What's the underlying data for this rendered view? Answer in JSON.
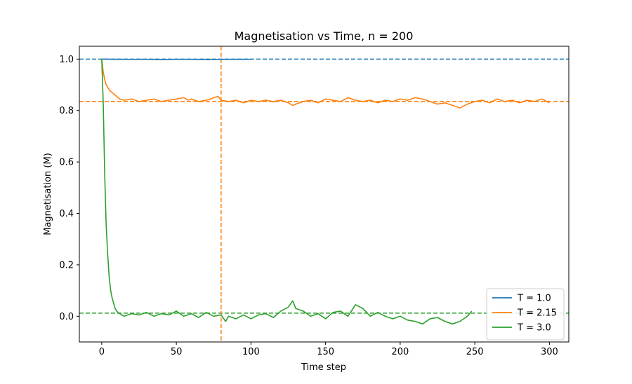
{
  "chart_data": {
    "type": "line",
    "title": "Magnetisation vs Time, n = 200",
    "xlabel": "Time step",
    "ylabel": "Magnetisation (M)",
    "xlim": [
      -15,
      313
    ],
    "ylim": [
      -0.1,
      1.05
    ],
    "xticks": [
      0,
      50,
      100,
      150,
      200,
      250,
      300
    ],
    "yticks": [
      0.0,
      0.2,
      0.4,
      0.6,
      0.8,
      1.0
    ],
    "xtick_labels": [
      "0",
      "50",
      "100",
      "150",
      "200",
      "250",
      "300"
    ],
    "ytick_labels": [
      "0.0",
      "0.2",
      "0.4",
      "0.6",
      "0.8",
      "1.0"
    ],
    "grid": false,
    "legend_position": "bottom-right",
    "series": [
      {
        "name": "T = 1.0",
        "color": "#1f77b4",
        "x": [
          0,
          10,
          20,
          30,
          40,
          50,
          60,
          70,
          80,
          90,
          100
        ],
        "y": [
          1.0,
          0.999,
          0.999,
          0.999,
          0.998,
          0.999,
          0.999,
          0.998,
          0.999,
          0.999,
          0.999
        ]
      },
      {
        "name": "T = 2.15",
        "color": "#ff7f0e",
        "x": [
          0,
          1,
          2,
          3,
          5,
          7,
          9,
          12,
          15,
          20,
          25,
          30,
          35,
          40,
          45,
          50,
          55,
          58,
          60,
          65,
          70,
          73,
          75,
          78,
          80,
          85,
          90,
          95,
          100,
          105,
          110,
          115,
          120,
          125,
          128,
          130,
          135,
          140,
          145,
          150,
          155,
          160,
          165,
          170,
          175,
          180,
          185,
          190,
          195,
          200,
          205,
          210,
          215,
          220,
          225,
          230,
          235,
          240,
          245,
          250,
          255,
          260,
          265,
          270,
          275,
          280,
          285,
          290,
          295,
          300
        ],
        "y": [
          1.0,
          0.95,
          0.92,
          0.9,
          0.88,
          0.87,
          0.86,
          0.845,
          0.84,
          0.845,
          0.835,
          0.84,
          0.845,
          0.835,
          0.84,
          0.845,
          0.85,
          0.84,
          0.845,
          0.835,
          0.84,
          0.845,
          0.85,
          0.855,
          0.84,
          0.835,
          0.84,
          0.83,
          0.84,
          0.835,
          0.84,
          0.835,
          0.84,
          0.83,
          0.82,
          0.825,
          0.835,
          0.84,
          0.83,
          0.845,
          0.84,
          0.835,
          0.85,
          0.84,
          0.835,
          0.84,
          0.83,
          0.84,
          0.835,
          0.845,
          0.84,
          0.85,
          0.845,
          0.835,
          0.825,
          0.83,
          0.82,
          0.81,
          0.825,
          0.835,
          0.84,
          0.83,
          0.845,
          0.835,
          0.84,
          0.83,
          0.84,
          0.835,
          0.845,
          0.83
        ]
      },
      {
        "name": "T = 3.0",
        "color": "#2ca02c",
        "x": [
          0,
          1,
          2,
          3,
          4,
          5,
          6,
          7,
          8,
          9,
          10,
          12,
          15,
          20,
          25,
          30,
          35,
          40,
          45,
          50,
          55,
          60,
          65,
          70,
          75,
          80,
          83,
          85,
          90,
          95,
          100,
          105,
          110,
          115,
          120,
          125,
          128,
          130,
          135,
          140,
          145,
          150,
          155,
          160,
          165,
          170,
          175,
          180,
          185,
          190,
          195,
          200,
          205,
          210,
          215,
          220,
          225,
          230,
          235,
          240,
          245,
          248
        ],
        "y": [
          1.0,
          0.83,
          0.55,
          0.35,
          0.24,
          0.15,
          0.1,
          0.07,
          0.05,
          0.03,
          0.02,
          0.01,
          0.0,
          0.01,
          0.005,
          0.015,
          0.0,
          0.01,
          0.005,
          0.02,
          0.0,
          0.01,
          -0.005,
          0.015,
          0.0,
          0.005,
          -0.02,
          0.0,
          -0.01,
          0.005,
          -0.01,
          0.005,
          0.01,
          -0.005,
          0.02,
          0.035,
          0.06,
          0.03,
          0.02,
          0.0,
          0.01,
          -0.01,
          0.015,
          0.02,
          0.0,
          0.045,
          0.03,
          0.0,
          0.015,
          0.0,
          -0.01,
          0.0,
          -0.015,
          -0.02,
          -0.03,
          -0.01,
          -0.005,
          -0.02,
          -0.03,
          -0.02,
          0.0,
          0.02
        ]
      }
    ],
    "reference_lines": [
      {
        "orientation": "horizontal",
        "value": 1.0,
        "color": "#1f77b4",
        "style": "dashed"
      },
      {
        "orientation": "horizontal",
        "value": 0.835,
        "color": "#ff7f0e",
        "style": "dashed"
      },
      {
        "orientation": "horizontal",
        "value": 0.012,
        "color": "#2ca02c",
        "style": "dashed"
      },
      {
        "orientation": "vertical",
        "value": 80,
        "color": "#ff7f0e",
        "style": "dashed"
      }
    ]
  }
}
